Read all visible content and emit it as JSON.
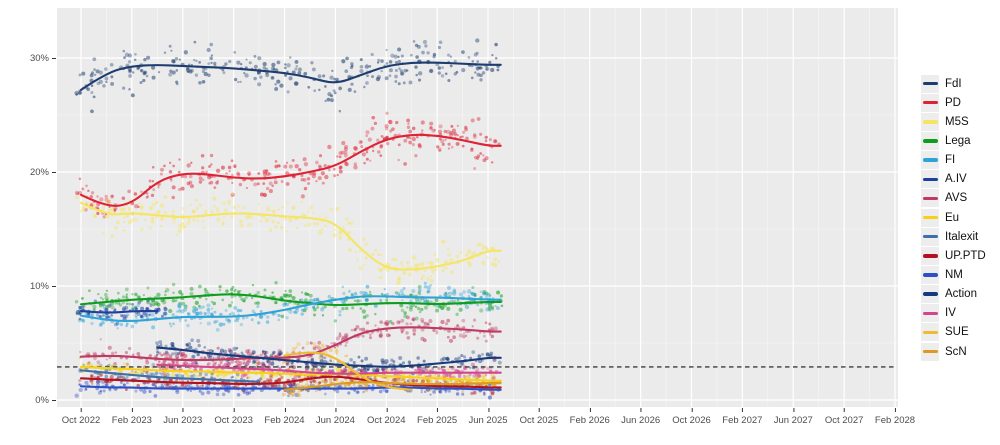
{
  "chart_data": {
    "type": "scatter",
    "description": "Opinion polling scatter plot with smoothed trend lines per party",
    "title": "",
    "xlabel": "",
    "ylabel": "",
    "grid": true,
    "legend_position": "right",
    "x_ticks": [
      "Oct 2022",
      "Feb 2023",
      "Jun 2023",
      "Oct 2023",
      "Feb 2024",
      "Jun 2024",
      "Oct 2024",
      "Feb 2025",
      "Jun 2025",
      "Oct 2025",
      "Feb 2026",
      "Jun 2026",
      "Oct 2026",
      "Feb 2027",
      "Jun 2027",
      "Oct 2027",
      "Feb 2028"
    ],
    "x_months_per_tick": 4,
    "x_domain": {
      "first_tick": "Oct 2022",
      "last_tick": "Feb 2028",
      "data_start": "Oct 2022",
      "data_end": "Jul 2025"
    },
    "y_ticks": [
      "0%",
      "10%",
      "20%",
      "30%"
    ],
    "y_tick_values": [
      0,
      10,
      20,
      30
    ],
    "ylim": [
      0,
      33.6
    ],
    "threshold_line": {
      "value": 2.9,
      "style": "dashed",
      "color": "#3c3c3c"
    },
    "trend_step_months": 2,
    "series": [
      {
        "name": "FdI",
        "color": "#1d3d6e",
        "start_month": 0,
        "values": [
          27.2,
          28.7,
          29.3,
          29.4,
          29.3,
          29.2,
          29.1,
          28.9,
          28.7,
          28.3,
          27.7,
          28.5,
          29.3,
          29.6,
          29.6,
          29.5,
          29.4
        ],
        "dots": {
          "n": 330,
          "sd": 0.9,
          "from": -0.3,
          "to": 33
        }
      },
      {
        "name": "PD",
        "color": "#dd2334",
        "start_month": 0,
        "values": [
          18.0,
          16.9,
          17.2,
          19.2,
          19.9,
          19.8,
          19.5,
          19.4,
          19.6,
          20.0,
          20.5,
          21.8,
          22.9,
          23.3,
          23.2,
          22.8,
          22.3
        ],
        "dots": {
          "n": 330,
          "sd": 0.8,
          "from": -0.3,
          "to": 33
        }
      },
      {
        "name": "M5S",
        "color": "#f5e562",
        "start_month": 0,
        "values": [
          17.3,
          16.2,
          16.4,
          16.2,
          16.0,
          16.2,
          16.4,
          16.3,
          16.1,
          16.0,
          15.6,
          13.2,
          11.5,
          11.4,
          11.7,
          12.2,
          13.1
        ],
        "dots": {
          "n": 300,
          "sd": 0.7,
          "from": -0.3,
          "to": 33
        }
      },
      {
        "name": "Lega",
        "color": "#0f9d1f",
        "start_month": 0,
        "values": [
          8.4,
          8.6,
          8.8,
          8.9,
          9.0,
          9.2,
          9.3,
          9.1,
          8.7,
          8.5,
          8.3,
          8.4,
          8.5,
          8.5,
          8.4,
          8.5,
          8.6
        ],
        "dots": {
          "n": 280,
          "sd": 0.55,
          "from": -0.3,
          "to": 33
        }
      },
      {
        "name": "FI",
        "color": "#2fa3d7",
        "start_month": 0,
        "values": [
          7.4,
          7.0,
          6.9,
          7.1,
          7.3,
          7.3,
          7.3,
          7.5,
          7.9,
          8.4,
          8.8,
          9.1,
          9.1,
          9.0,
          9.0,
          8.9,
          8.8
        ],
        "dots": {
          "n": 280,
          "sd": 0.5,
          "from": -0.3,
          "to": 33
        }
      },
      {
        "name": "A.IV",
        "color": "#1f3f9f",
        "start_month": 0,
        "values": [
          7.8,
          7.6,
          7.8,
          7.8
        ],
        "dots": {
          "n": 70,
          "sd": 0.45,
          "from": -0.3,
          "to": 7
        }
      },
      {
        "name": "AVS",
        "color": "#bf3a63",
        "start_month": 0,
        "values": [
          3.8,
          3.9,
          3.8,
          3.6,
          3.5,
          3.5,
          3.6,
          3.7,
          3.7,
          3.9,
          4.8,
          5.9,
          6.3,
          6.4,
          6.3,
          6.2,
          6.0
        ],
        "dots": {
          "n": 290,
          "sd": 0.45,
          "from": -0.3,
          "to": 33
        }
      },
      {
        "name": "Eu",
        "color": "#f7d117",
        "start_month": 0,
        "values": [
          2.9,
          2.8,
          2.7,
          2.6,
          2.5,
          2.5,
          2.4,
          2.4,
          2.3,
          2.2,
          2.3,
          2.2,
          2.1,
          2.0,
          1.9,
          1.8,
          1.7
        ],
        "dots": {
          "n": 250,
          "sd": 0.3,
          "from": -0.3,
          "to": 33
        }
      },
      {
        "name": "Italexit",
        "color": "#3d6fa8",
        "start_month": 0,
        "values": [
          2.6,
          2.4,
          2.2,
          2.0,
          1.9,
          1.8,
          1.7,
          1.6
        ],
        "dots": {
          "n": 100,
          "sd": 0.35,
          "from": -0.3,
          "to": 14.5
        }
      },
      {
        "name": "UP.PTD",
        "color": "#b01220",
        "start_month": 0,
        "values": [
          1.9,
          1.8,
          1.7,
          1.6,
          1.5,
          1.5,
          1.4,
          1.4,
          1.5,
          1.9,
          2.1,
          1.8,
          1.5,
          1.3,
          1.2,
          1.2,
          1.1
        ],
        "dots": {
          "n": 220,
          "sd": 0.28,
          "from": -0.3,
          "to": 33
        }
      },
      {
        "name": "NM",
        "color": "#2e4fc6",
        "start_month": 0,
        "values": [
          1.2,
          1.1,
          1.1,
          1.0,
          1.0,
          1.0,
          1.0,
          1.0,
          1.0,
          1.0,
          1.0,
          1.0,
          1.1,
          1.1,
          1.0,
          1.0,
          0.9
        ],
        "dots": {
          "n": 220,
          "sd": 0.28,
          "from": -0.3,
          "to": 33
        }
      },
      {
        "name": "Action",
        "color": "#173a7c",
        "start_month": 6,
        "values": [
          4.6,
          4.4,
          4.1,
          3.9,
          3.7,
          3.5,
          3.3,
          3.1,
          3.0,
          2.9,
          3.0,
          3.2,
          3.4,
          3.7
        ],
        "dots": {
          "n": 230,
          "sd": 0.4,
          "from": 5.8,
          "to": 33
        }
      },
      {
        "name": "IV",
        "color": "#d2478c",
        "start_month": 6,
        "values": [
          3.1,
          3.0,
          2.9,
          2.8,
          2.7,
          2.6,
          2.4,
          2.3,
          2.3,
          2.4,
          2.4,
          2.4,
          2.4,
          2.4
        ],
        "dots": {
          "n": 230,
          "sd": 0.3,
          "from": 5.8,
          "to": 33
        }
      },
      {
        "name": "SUE",
        "color": "#eebb35",
        "start_month": 16,
        "values": [
          3.9,
          4.3,
          3.8,
          2.0,
          1.1,
          0.9
        ],
        "dots": {
          "n": 45,
          "sd": 0.5,
          "from": 16,
          "to": 21.5
        }
      },
      {
        "name": "ScN",
        "color": "#dc9b20",
        "start_month": 16,
        "values": [
          0.9,
          1.1,
          1.4,
          1.6,
          1.5,
          1.4,
          1.4,
          1.4,
          1.5
        ],
        "dots": {
          "n": 150,
          "sd": 0.3,
          "from": 15.5,
          "to": 33
        }
      }
    ]
  },
  "colors": {
    "panel_bg": "#ebebeb",
    "grid_major": "#ffffff",
    "grid_minor": "rgba(255,255,255,0.55)",
    "threshold": "#3c3c3c",
    "axis_text": "#4d4d4d",
    "legend_text": "#111111",
    "legend_key_bg": "#ededed"
  }
}
